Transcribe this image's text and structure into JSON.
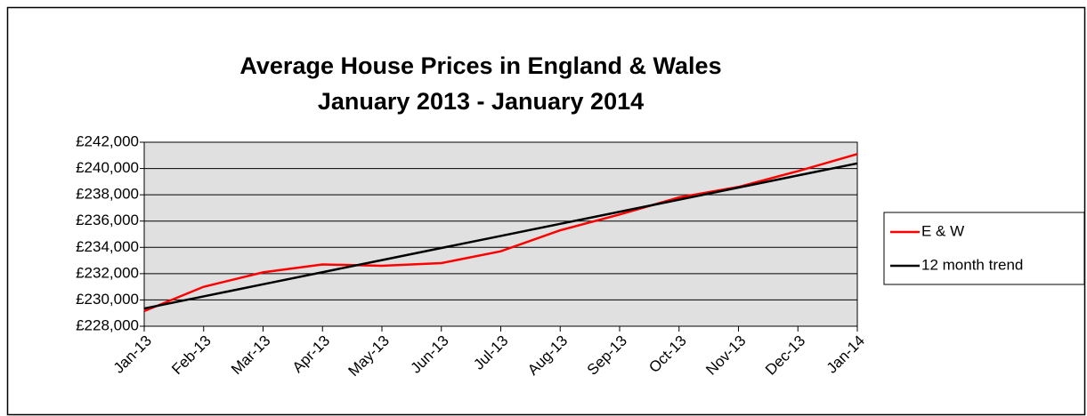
{
  "chart_data": {
    "type": "line",
    "title": [
      "Average House Prices in England & Wales",
      "January 2013 - January 2014"
    ],
    "categories": [
      "Jan-13",
      "Feb-13",
      "Mar-13",
      "Apr-13",
      "May-13",
      "Jun-13",
      "Jul-13",
      "Aug-13",
      "Sep-13",
      "Oct-13",
      "Nov-13",
      "Dec-13",
      "Jan-14"
    ],
    "series": [
      {
        "name": "E & W",
        "color": "#ff0000",
        "values": [
          229150,
          231000,
          232100,
          232700,
          232600,
          232800,
          233700,
          235300,
          236500,
          237800,
          238600,
          239800,
          241100
        ]
      },
      {
        "name": "12 month trend",
        "color": "#000000",
        "values": [
          229350,
          230270,
          231190,
          232110,
          233030,
          233950,
          234870,
          235790,
          236710,
          237630,
          238550,
          239470,
          240390
        ]
      }
    ],
    "ylim": [
      228000,
      242000
    ],
    "yticks": [
      {
        "value": 228000,
        "label": "£228,000"
      },
      {
        "value": 230000,
        "label": "£230,000"
      },
      {
        "value": 232000,
        "label": "£232,000"
      },
      {
        "value": 234000,
        "label": "£234,000"
      },
      {
        "value": 236000,
        "label": "£236,000"
      },
      {
        "value": 238000,
        "label": "£238,000"
      },
      {
        "value": 240000,
        "label": "£240,000"
      },
      {
        "value": 242000,
        "label": "£242,000"
      }
    ],
    "grid": true,
    "plot_background": "#e0e0e0",
    "legend": "right"
  }
}
